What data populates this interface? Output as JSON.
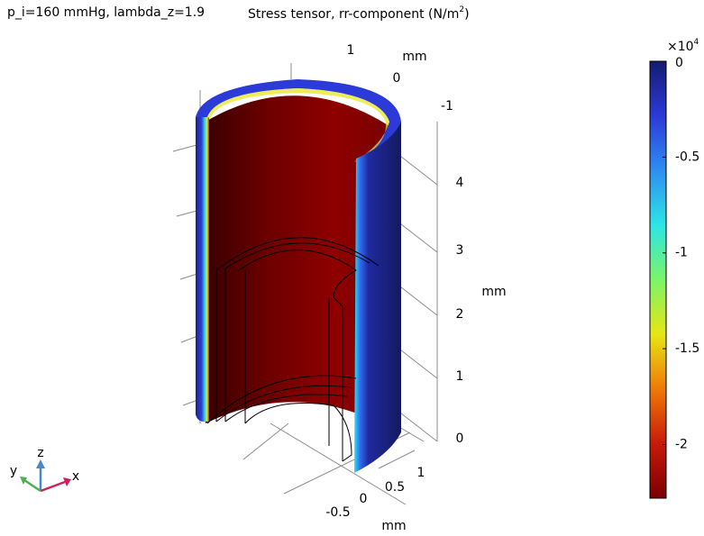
{
  "header": {
    "label": "p_i=160 mmHg, lambda_z=1.9",
    "title": "Stress tensor, rr-component (N/m",
    "title_sup": "2",
    "title_end": ")"
  },
  "axes": {
    "x": {
      "ticks": [
        1,
        0,
        -1
      ],
      "unit": "mm"
    },
    "y": {
      "ticks": [
        -0.5,
        0,
        0.5,
        1
      ],
      "unit": "mm"
    },
    "z": {
      "ticks": [
        0,
        1,
        2,
        3,
        4
      ],
      "unit": "mm"
    }
  },
  "triad": {
    "x": "x",
    "y": "y",
    "z": "z"
  },
  "colorbar": {
    "multiplier": "×10",
    "multiplier_exp": "4",
    "lim": [
      -2.28,
      0
    ],
    "ticks": [
      0,
      -0.5,
      -1,
      -1.5,
      -2
    ],
    "colors": [
      "#7a0000",
      "#c81a0a",
      "#ef7a08",
      "#e6e614",
      "#7cf46a",
      "#2ce6e6",
      "#2f8ef0",
      "#2c3ad8",
      "#141c6e"
    ]
  }
}
